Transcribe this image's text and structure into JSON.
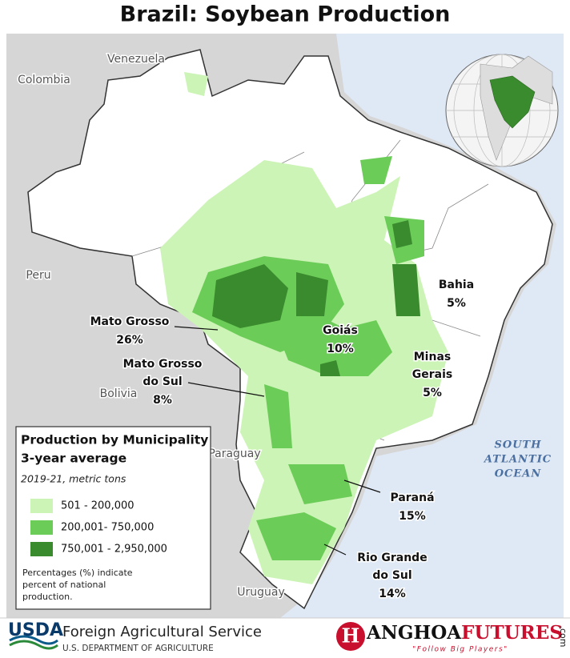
{
  "title": "Brazil: Soybean Production",
  "countries": [
    "Venezuela",
    "Colombia",
    "Peru",
    "Bolivia",
    "Paraguay",
    "Uruguay"
  ],
  "ocean": [
    "SOUTH",
    "ATLANTIC",
    "OCEAN"
  ],
  "states": [
    {
      "name": [
        "Mato Grosso"
      ],
      "share": "26%"
    },
    {
      "name": [
        "Mato Grosso",
        "do Sul"
      ],
      "share": "8%"
    },
    {
      "name": [
        "Goiás"
      ],
      "share": "10%"
    },
    {
      "name": [
        "Bahia"
      ],
      "share": "5%"
    },
    {
      "name": [
        "Minas",
        "Gerais"
      ],
      "share": "5%"
    },
    {
      "name": [
        "Paraná"
      ],
      "share": "15%"
    },
    {
      "name": [
        "Rio Grande",
        "do Sul"
      ],
      "share": "14%"
    }
  ],
  "legend": {
    "title": [
      "Production by Municipality",
      "3-year average"
    ],
    "subtitle": "2019-21, metric tons",
    "items": [
      {
        "label": "501 - 200,000",
        "color": "#ccf4b6"
      },
      {
        "label": "200,001- 750,000",
        "color": "#6ccc58"
      },
      {
        "label": "750,001 - 2,950,000",
        "color": "#3a8a2e"
      }
    ],
    "note": [
      "Percentages (%) indicate",
      "percent of national",
      "production."
    ]
  },
  "footer": {
    "agency": "USDA",
    "service": "Foreign Agricultural Service",
    "department": "U.S. DEPARTMENT OF AGRICULTURE"
  },
  "watermark": {
    "mark": "H",
    "brand": [
      "ANGHOA",
      "FUTURES"
    ],
    "domain": ".com",
    "slogan": "\"Follow Big Players\""
  }
}
